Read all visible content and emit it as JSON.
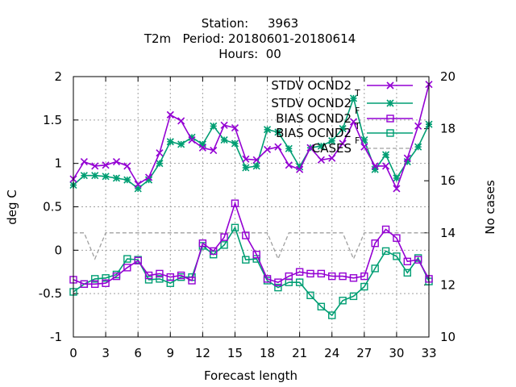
{
  "title_lines": [
    "Station:     3963",
    "T2m   Period: 20180601-20180614",
    "Hours:  00"
  ],
  "chart_data": {
    "type": "line",
    "xlabel": "Forecast length",
    "ylabel": "deg C",
    "y2label": "No cases",
    "xlim": [
      0,
      33
    ],
    "ylim": [
      -1,
      2
    ],
    "y2lim": [
      10,
      20
    ],
    "xticks": [
      0,
      3,
      6,
      9,
      12,
      15,
      18,
      21,
      24,
      27,
      30,
      33
    ],
    "yticks": [
      -1,
      -0.5,
      0,
      0.5,
      1,
      1.5,
      2
    ],
    "y2ticks": [
      10,
      12,
      14,
      16,
      18,
      20
    ],
    "grid": true,
    "legend_position": "top-right",
    "x": [
      0,
      1,
      2,
      3,
      4,
      5,
      6,
      7,
      8,
      9,
      10,
      11,
      12,
      13,
      14,
      15,
      16,
      17,
      18,
      19,
      20,
      21,
      22,
      23,
      24,
      25,
      26,
      27,
      28,
      29,
      30,
      31,
      32,
      33
    ],
    "series": [
      {
        "name": "STDV OCND2",
        "subscript": "T",
        "color": "#9400d3",
        "marker": "x",
        "axis": "y",
        "values": [
          0.82,
          1.02,
          0.97,
          0.98,
          1.02,
          0.97,
          0.76,
          0.84,
          1.12,
          1.56,
          1.49,
          1.27,
          1.18,
          1.15,
          1.44,
          1.41,
          1.05,
          1.04,
          1.16,
          1.19,
          0.98,
          0.93,
          1.18,
          1.04,
          1.06,
          1.23,
          1.48,
          1.19,
          0.97,
          0.97,
          0.71,
          1.06,
          1.43,
          1.91
        ]
      },
      {
        "name": "STDV OCND2",
        "subscript": "F",
        "color": "#009e73",
        "marker": "star",
        "axis": "y",
        "values": [
          0.75,
          0.86,
          0.86,
          0.85,
          0.83,
          0.81,
          0.71,
          0.81,
          1.0,
          1.25,
          1.22,
          1.3,
          1.22,
          1.43,
          1.27,
          1.23,
          0.95,
          0.97,
          1.39,
          1.36,
          1.17,
          0.96,
          1.18,
          1.2,
          1.26,
          1.4,
          1.75,
          1.27,
          0.93,
          1.1,
          0.83,
          1.02,
          1.19,
          1.45
        ]
      },
      {
        "name": "BIAS OCND2",
        "subscript": "T",
        "color": "#9400d3",
        "marker": "square",
        "axis": "y",
        "values": [
          -0.34,
          -0.39,
          -0.39,
          -0.38,
          -0.3,
          -0.2,
          -0.12,
          -0.29,
          -0.27,
          -0.31,
          -0.29,
          -0.35,
          0.08,
          -0.01,
          0.15,
          0.54,
          0.17,
          -0.05,
          -0.33,
          -0.37,
          -0.3,
          -0.25,
          -0.27,
          -0.27,
          -0.3,
          -0.3,
          -0.32,
          -0.3,
          0.08,
          0.24,
          0.14,
          -0.13,
          -0.11,
          -0.33
        ]
      },
      {
        "name": "BIAS OCND2",
        "subscript": "F",
        "color": "#009e73",
        "marker": "square",
        "axis": "y",
        "values": [
          -0.48,
          -0.39,
          -0.33,
          -0.32,
          -0.28,
          -0.1,
          -0.11,
          -0.34,
          -0.33,
          -0.38,
          -0.31,
          -0.31,
          0.05,
          -0.05,
          0.06,
          0.26,
          -0.11,
          -0.1,
          -0.35,
          -0.43,
          -0.37,
          -0.37,
          -0.52,
          -0.65,
          -0.75,
          -0.58,
          -0.53,
          -0.42,
          -0.21,
          -0.01,
          -0.07,
          -0.26,
          -0.09,
          -0.36
        ]
      },
      {
        "name": "CASES",
        "subscript": "",
        "color": "#a0a0a0",
        "marker": "none",
        "dashed": true,
        "axis": "y2",
        "values": [
          14,
          14,
          13,
          14,
          14,
          14,
          14,
          14,
          14,
          14,
          14,
          14,
          14,
          14,
          14,
          14,
          14,
          14,
          14,
          13,
          14,
          14,
          14,
          14,
          14,
          14,
          13,
          14,
          14,
          14,
          14,
          14,
          14,
          14
        ]
      }
    ]
  }
}
